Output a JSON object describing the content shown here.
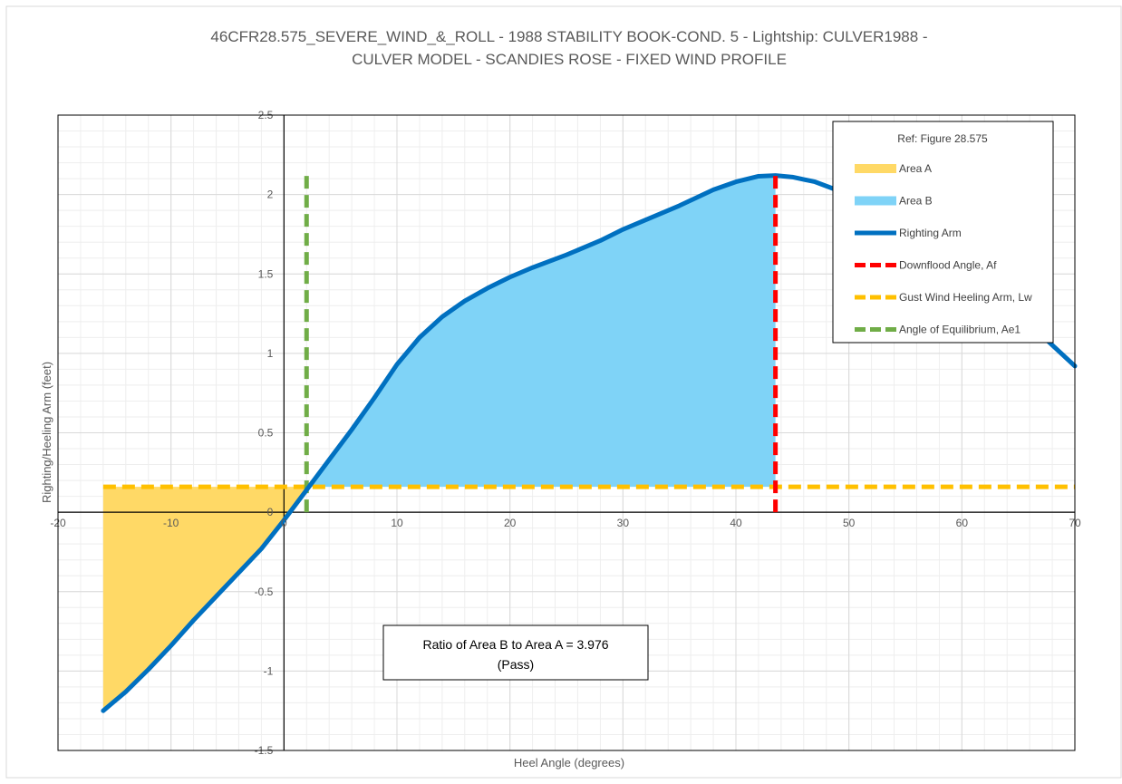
{
  "chart_data": {
    "type": "line",
    "title_line1": "46CFR28.575_SEVERE_WIND_&_ROLL - 1988 STABILITY BOOK-COND. 5 - Lightship: CULVER1988 -",
    "title_line2": "CULVER MODEL - SCANDIES ROSE - FIXED WIND PROFILE",
    "xlabel": "Heel Angle (degrees)",
    "ylabel": "Righting/Heeling Arm (feet)",
    "xlim": [
      -20,
      70
    ],
    "ylim": [
      -1.5,
      2.5
    ],
    "x_ticks": [
      -20,
      -10,
      0,
      10,
      20,
      30,
      40,
      50,
      60,
      70
    ],
    "x_tick_labels": [
      "-20",
      "-10",
      "0",
      "10",
      "20",
      "30",
      "40",
      "50",
      "60",
      "70"
    ],
    "y_ticks": [
      -1.5,
      -1,
      -0.5,
      0,
      0.5,
      1,
      1.5,
      2,
      2.5
    ],
    "y_tick_labels": [
      "-1.5",
      "-1",
      "-0.5",
      "0",
      "0.5",
      "1",
      "1.5",
      "2",
      "2.5"
    ],
    "grid": true,
    "legend": {
      "title": "Ref: Figure 28.575",
      "placement": "top-right",
      "items": [
        {
          "label": "Area A",
          "color": "#FFD966",
          "kind": "area"
        },
        {
          "label": "Area B",
          "color": "#7FD3F7",
          "kind": "area"
        },
        {
          "label": "Righting Arm",
          "color": "#0070C0",
          "kind": "line"
        },
        {
          "label": "Downflood Angle, Af",
          "color": "#FF0000",
          "kind": "dash"
        },
        {
          "label": "Gust Wind Heeling Arm, Lw",
          "color": "#FFC000",
          "kind": "dash"
        },
        {
          "label": "Angle of Equilibrium, Ae1",
          "color": "#70AD47",
          "kind": "dash"
        }
      ]
    },
    "annotation": {
      "line1": "Ratio of Area B to Area A = 3.976",
      "line2": "(Pass)"
    },
    "series": [
      {
        "name": "Righting Arm",
        "color": "#0070C0",
        "x": [
          -16,
          -14,
          -12,
          -10,
          -8,
          -6,
          -4,
          -2,
          0,
          2,
          4,
          6,
          8,
          10,
          12,
          14,
          16,
          18,
          20,
          22,
          25,
          28,
          30,
          32,
          35,
          38,
          40,
          42,
          43.5,
          45,
          47,
          50,
          55,
          60,
          65,
          70
        ],
        "y": [
          -1.25,
          -1.13,
          -0.99,
          -0.84,
          -0.68,
          -0.53,
          -0.38,
          -0.23,
          -0.05,
          0.14,
          0.33,
          0.52,
          0.72,
          0.93,
          1.1,
          1.23,
          1.33,
          1.41,
          1.48,
          1.54,
          1.62,
          1.71,
          1.78,
          1.84,
          1.93,
          2.03,
          2.08,
          2.115,
          2.12,
          2.11,
          2.08,
          2.0,
          1.78,
          1.52,
          1.25,
          0.92
        ]
      },
      {
        "name": "Downflood Angle, Af",
        "color": "#FF0000",
        "x": [
          43.5,
          43.5
        ],
        "y": [
          0,
          2.12
        ]
      },
      {
        "name": "Gust Wind Heeling Arm, Lw",
        "color": "#FFC000",
        "x": [
          -16,
          70
        ],
        "y": [
          0.16,
          0.16
        ]
      },
      {
        "name": "Angle of Equilibrium, Ae1",
        "color": "#70AD47",
        "x": [
          2,
          2
        ],
        "y": [
          0,
          2.13
        ]
      }
    ],
    "area_a": {
      "name": "Area A",
      "color": "#FFD966",
      "x_range": [
        -16,
        2
      ],
      "level": 0.16
    },
    "area_b": {
      "name": "Area B",
      "color": "#7FD3F7",
      "x_range": [
        2,
        43.5
      ],
      "level": 0.16
    }
  }
}
